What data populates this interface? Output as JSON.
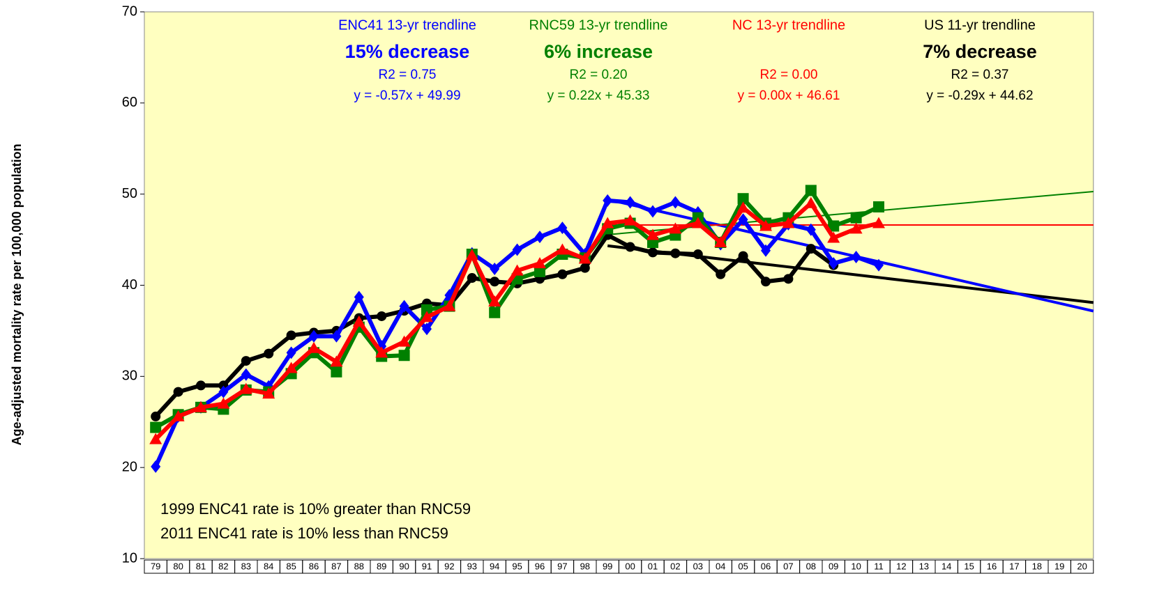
{
  "chart_data": {
    "type": "line",
    "y_label": "Age-adjusted mortality rate per 100,000 population",
    "categories": [
      "79",
      "80",
      "81",
      "82",
      "83",
      "84",
      "85",
      "86",
      "87",
      "88",
      "89",
      "90",
      "91",
      "92",
      "93",
      "94",
      "95",
      "96",
      "97",
      "98",
      "99",
      "00",
      "01",
      "02",
      "03",
      "04",
      "05",
      "06",
      "07",
      "08",
      "09",
      "10",
      "11",
      "12",
      "13",
      "14",
      "15",
      "16",
      "17",
      "18",
      "19",
      "20"
    ],
    "ylim": [
      10,
      70
    ],
    "yticks": [
      10,
      20,
      30,
      40,
      50,
      60,
      70
    ],
    "background": "#ffffc0",
    "series": [
      {
        "color": "#000000",
        "marker": "circle",
        "values": [
          25.6,
          28.3,
          29.0,
          29.0,
          31.7,
          32.5,
          34.5,
          34.8,
          35.0,
          36.4,
          36.6,
          37.2,
          38.0,
          37.8,
          40.8,
          40.4,
          40.2,
          40.7,
          41.2,
          41.9,
          45.5,
          44.2,
          43.6,
          43.5,
          43.4,
          41.2,
          43.2,
          40.4,
          40.7,
          44.0,
          42.2,
          null,
          null,
          null,
          null,
          null,
          null,
          null,
          null,
          null,
          null,
          null
        ],
        "trend": {
          "title": "US 11-yr trendline",
          "change": "7% decrease",
          "r2": "R2 = 0.37",
          "equation": "y = -0.29x + 44.62",
          "slope": -0.29,
          "intercept": 44.62,
          "from": "99"
        }
      },
      {
        "color": "#0000ff",
        "marker": "diamond",
        "values": [
          20.1,
          25.6,
          26.6,
          28.3,
          30.2,
          28.9,
          32.6,
          34.4,
          34.4,
          38.7,
          33.3,
          37.7,
          35.2,
          38.9,
          43.5,
          41.8,
          43.9,
          45.3,
          46.3,
          43.4,
          49.3,
          49.1,
          48.1,
          49.1,
          48.0,
          44.5,
          47.2,
          43.8,
          46.7,
          46.1,
          42.4,
          43.1,
          42.2,
          null,
          null,
          null,
          null,
          null,
          null,
          null,
          null,
          null
        ],
        "trend": {
          "title": "ENC41 13-yr trendline",
          "change": "15% decrease",
          "r2": "R2 = 0.75",
          "equation": "y = -0.57x + 49.99",
          "slope": -0.57,
          "intercept": 49.99,
          "from": "99"
        }
      },
      {
        "color": "#008000",
        "marker": "square",
        "values": [
          24.4,
          25.8,
          26.6,
          26.4,
          28.5,
          28.3,
          30.3,
          32.6,
          30.5,
          35.4,
          32.2,
          32.3,
          37.3,
          37.7,
          43.4,
          37.0,
          40.7,
          41.5,
          43.4,
          43.0,
          46.2,
          46.8,
          44.7,
          45.5,
          47.4,
          44.7,
          49.5,
          46.8,
          47.4,
          50.4,
          46.5,
          47.4,
          48.6,
          null,
          null,
          null,
          null,
          null,
          null,
          null,
          null,
          null
        ],
        "trend": {
          "title": "RNC59 13-yr trendline",
          "change": "6% increase",
          "r2": "R2 = 0.20",
          "equation": "y = 0.22x + 45.33",
          "slope": 0.22,
          "intercept": 45.33,
          "from": "99"
        }
      },
      {
        "color": "#ff0000",
        "marker": "triangle",
        "values": [
          23.1,
          25.6,
          26.6,
          27.0,
          28.6,
          28.1,
          30.9,
          33.1,
          31.6,
          36.0,
          32.6,
          33.8,
          36.5,
          37.7,
          43.3,
          38.2,
          41.6,
          42.4,
          43.9,
          42.9,
          46.8,
          47.1,
          45.5,
          46.2,
          46.8,
          44.7,
          48.5,
          46.5,
          46.8,
          49.0,
          45.2,
          46.2,
          46.8,
          null,
          null,
          null,
          null,
          null,
          null,
          null,
          null,
          null
        ],
        "trend": {
          "title": "NC 13-yr trendline",
          "r2": "R2 = 0.00",
          "equation": "y = 0.00x + 46.61",
          "slope": 0.0,
          "intercept": 46.61,
          "from": "99"
        }
      }
    ],
    "annotations": [
      "1999 ENC41 rate is 10% greater than RNC59",
      "2011 ENC41 rate is 10% less than RNC59"
    ]
  }
}
